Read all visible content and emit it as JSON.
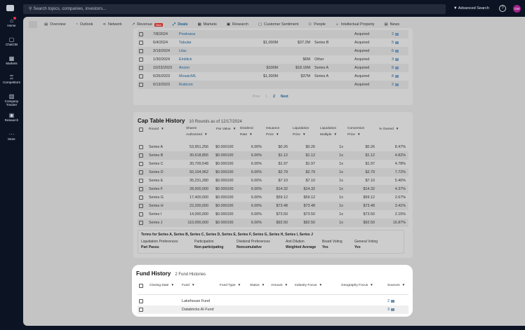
{
  "topbar": {
    "search_placeholder": "Search topics, companies, investors...",
    "advanced_search": "Advanced Search",
    "help": "?",
    "avatar": "CM"
  },
  "sidebar": [
    {
      "label": "Home",
      "icon": "⌂"
    },
    {
      "label": "ChatCBI",
      "icon": "▢"
    },
    {
      "label": "Markets",
      "icon": "▦"
    },
    {
      "label": "Competitors",
      "icon": "♖"
    },
    {
      "label": "Company Tracker",
      "icon": "▥"
    },
    {
      "label": "Research",
      "icon": "▣"
    },
    {
      "label": "More",
      "icon": "···"
    }
  ],
  "tabs": [
    {
      "label": "Overview",
      "icon": "▤"
    },
    {
      "label": "Outlook",
      "icon": "◔"
    },
    {
      "label": "Network",
      "icon": "⋖"
    },
    {
      "label": "Revenue",
      "icon": "↗",
      "badge": "New"
    },
    {
      "label": "Deals",
      "icon": "⤢",
      "active": true
    },
    {
      "label": "Markets",
      "icon": "▦"
    },
    {
      "label": "Research",
      "icon": "▣"
    },
    {
      "label": "Customer Sentiment",
      "icon": "▢"
    },
    {
      "label": "People",
      "icon": "⚇"
    },
    {
      "label": "Intellectual Property",
      "icon": "☼"
    },
    {
      "label": "News",
      "icon": "▤"
    }
  ],
  "deals": {
    "rows": [
      [
        "7/8/2024",
        "Prodvana",
        "",
        "",
        "",
        "Acquired",
        "2"
      ],
      [
        "6/4/2024",
        "Tabular",
        "$1,000M",
        "$37.2M",
        "Series B",
        "Acquired",
        "5"
      ],
      [
        "3/19/2024",
        "Lilac",
        "",
        "",
        "",
        "Acquired",
        "6"
      ],
      [
        "1/30/2024",
        "Einblick",
        "",
        "$6M",
        "Other",
        "Acquired",
        "3"
      ],
      [
        "10/23/2023",
        "Arcion",
        "$100M",
        "$18.16M",
        "Series A",
        "Acquired",
        "8"
      ],
      [
        "6/26/2023",
        "MosaicML",
        "$1,300M",
        "$37M",
        "Series A",
        "Acquired",
        "8"
      ],
      [
        "6/13/2023",
        "Rubicon",
        "",
        "",
        "",
        "Acquired",
        "2"
      ]
    ],
    "pagination": {
      "prev": "Prev",
      "pages": [
        "1",
        "2"
      ],
      "current": "2",
      "next": "Next"
    }
  },
  "cap_table": {
    "title": "Cap Table History",
    "subtitle": "10 Rounds as of 12/17/2024",
    "headers": [
      "Round",
      "Shares Authorized",
      "Par Value",
      "Dividend Rate",
      "Issuance Price",
      "Liquidation Price",
      "Liquidation Multiple",
      "Conversion Price",
      "% Owned"
    ],
    "rows": [
      [
        "Series A",
        "53,951,256",
        "$0.000100",
        "6.00%",
        "$0.26",
        "$0.26",
        "1x",
        "$0.26",
        "8.47%"
      ],
      [
        "Series B",
        "30,618,855",
        "$0.000100",
        "6.00%",
        "$1.12",
        "$1.12",
        "1x",
        "$1.12",
        "4.82%"
      ],
      [
        "Series C",
        "30,709,548",
        "$0.000100",
        "6.00%",
        "$1.97",
        "$1.97",
        "1x",
        "$1.97",
        "4.78%"
      ],
      [
        "Series D",
        "50,104,962",
        "$0.000100",
        "6.00%",
        "$2.79",
        "$2.79",
        "1x",
        "$2.79",
        "7.72%"
      ],
      [
        "Series E",
        "35,231,280",
        "$0.000100",
        "6.00%",
        "$7.10",
        "$7.10",
        "1x",
        "$7.10",
        "5.40%"
      ],
      [
        "Series F",
        "28,500,000",
        "$0.000100",
        "6.00%",
        "$14.32",
        "$14.32",
        "1x",
        "$14.32",
        "4.37%"
      ],
      [
        "Series G",
        "17,400,000",
        "$0.000100",
        "6.00%",
        "$59.12",
        "$59.12",
        "1x",
        "$59.12",
        "2.67%"
      ],
      [
        "Series H",
        "22,200,000",
        "$0.000100",
        "6.00%",
        "$73.48",
        "$73.48",
        "1x",
        "$73.48",
        "3.41%"
      ],
      [
        "Series I",
        "14,000,000",
        "$0.000100",
        "6.00%",
        "$73.50",
        "$73.50",
        "1x",
        "$73.50",
        "2.15%"
      ],
      [
        "Series J",
        "110,000,000",
        "$0.000100",
        "6.00%",
        "$92.50",
        "$92.50",
        "1x",
        "$92.50",
        "16.87%"
      ]
    ],
    "terms": {
      "title": "Terms for Series A, Series B, Series C, Series D, Series E, Series F, Series G, Series H, Series I, Series J",
      "items": [
        {
          "label": "Liquidation Preferences",
          "value": "Pari Passu"
        },
        {
          "label": "Participation",
          "value": "Non-participating"
        },
        {
          "label": "Dividend Preferences",
          "value": "Noncumulative"
        },
        {
          "label": "Anti Dilution",
          "value": "Weighted Average"
        },
        {
          "label": "Board Voting",
          "value": "Yes"
        },
        {
          "label": "General Voting",
          "value": "Yes"
        }
      ]
    }
  },
  "fund_history": {
    "title": "Fund History",
    "subtitle": "2 Fund Histories",
    "headers": [
      "Closing Date",
      "Fund",
      "Fund Type",
      "Status",
      "Amount",
      "Industry Focus",
      "Geography Focus",
      "Sources"
    ],
    "rows": [
      {
        "fund": "Lakehouse Fund",
        "sources": "2"
      },
      {
        "fund": "Databricks AI Fund",
        "sources": "3"
      }
    ]
  }
}
